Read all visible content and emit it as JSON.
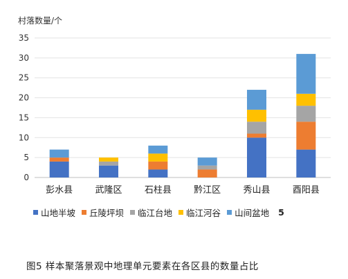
{
  "figure_caption": "图5  样本聚落景观中地理单元要素在各区县的数量占比",
  "stray_legend_text": "5",
  "chart_data": {
    "type": "bar",
    "stacked": true,
    "ylabel": "村落数量/个",
    "xlabel": "",
    "ylim": [
      0,
      35
    ],
    "yticks": [
      0,
      5,
      10,
      15,
      20,
      25,
      30,
      35
    ],
    "grid": true,
    "legend_position": "bottom",
    "categories": [
      "彭水县",
      "武隆区",
      "石柱县",
      "黔江区",
      "秀山县",
      "酉阳县"
    ],
    "series": [
      {
        "name": "山地半坡",
        "color": "#4472c4",
        "values": [
          4,
          3,
          2,
          0,
          10,
          7
        ]
      },
      {
        "name": "丘陵坪坝",
        "color": "#ed7d31",
        "values": [
          1,
          0,
          2,
          2,
          1,
          7
        ]
      },
      {
        "name": "临江台地",
        "color": "#a5a5a5",
        "values": [
          0,
          1,
          0,
          1,
          3,
          4
        ]
      },
      {
        "name": "临江河谷",
        "color": "#ffc000",
        "values": [
          0,
          1,
          2,
          0,
          3,
          3
        ]
      },
      {
        "name": "山间盆地",
        "color": "#5b9bd5",
        "values": [
          2,
          0,
          2,
          2,
          5,
          10
        ]
      }
    ]
  }
}
